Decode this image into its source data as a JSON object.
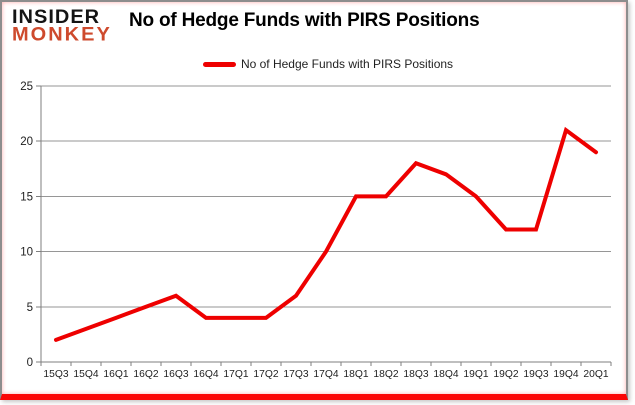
{
  "header": {
    "logo_line1": "INSIDER",
    "logo_line2": "MONKEY",
    "title": "No of Hedge Funds with PIRS Positions"
  },
  "legend": {
    "label": "No of Hedge Funds with PIRS Positions"
  },
  "colors": {
    "line": "#ee0000",
    "logo_accent": "#ce4a2d",
    "bottom_bar": "#fb0404",
    "gridline": "#969696",
    "axis": "#7f7f7f",
    "axis_text": "#1f1f1f"
  },
  "chart_data": {
    "type": "line",
    "title": "No of Hedge Funds with PIRS Positions",
    "xlabel": "",
    "ylabel": "",
    "categories": [
      "15Q3",
      "15Q4",
      "16Q1",
      "16Q2",
      "16Q3",
      "16Q4",
      "17Q1",
      "17Q2",
      "17Q3",
      "17Q4",
      "18Q1",
      "18Q2",
      "18Q3",
      "18Q4",
      "19Q1",
      "19Q2",
      "19Q3",
      "19Q4",
      "20Q1"
    ],
    "series": [
      {
        "name": "No of Hedge Funds with PIRS Positions",
        "color": "#ee0000",
        "values": [
          2,
          3,
          4,
          5,
          6,
          4,
          4,
          4,
          6,
          10,
          15,
          15,
          18,
          17,
          15,
          12,
          12,
          21,
          19
        ]
      }
    ],
    "ylim": [
      0,
      25
    ],
    "yticks": [
      0,
      5,
      10,
      15,
      20,
      25
    ],
    "grid": true,
    "legend_position": "top-center"
  }
}
